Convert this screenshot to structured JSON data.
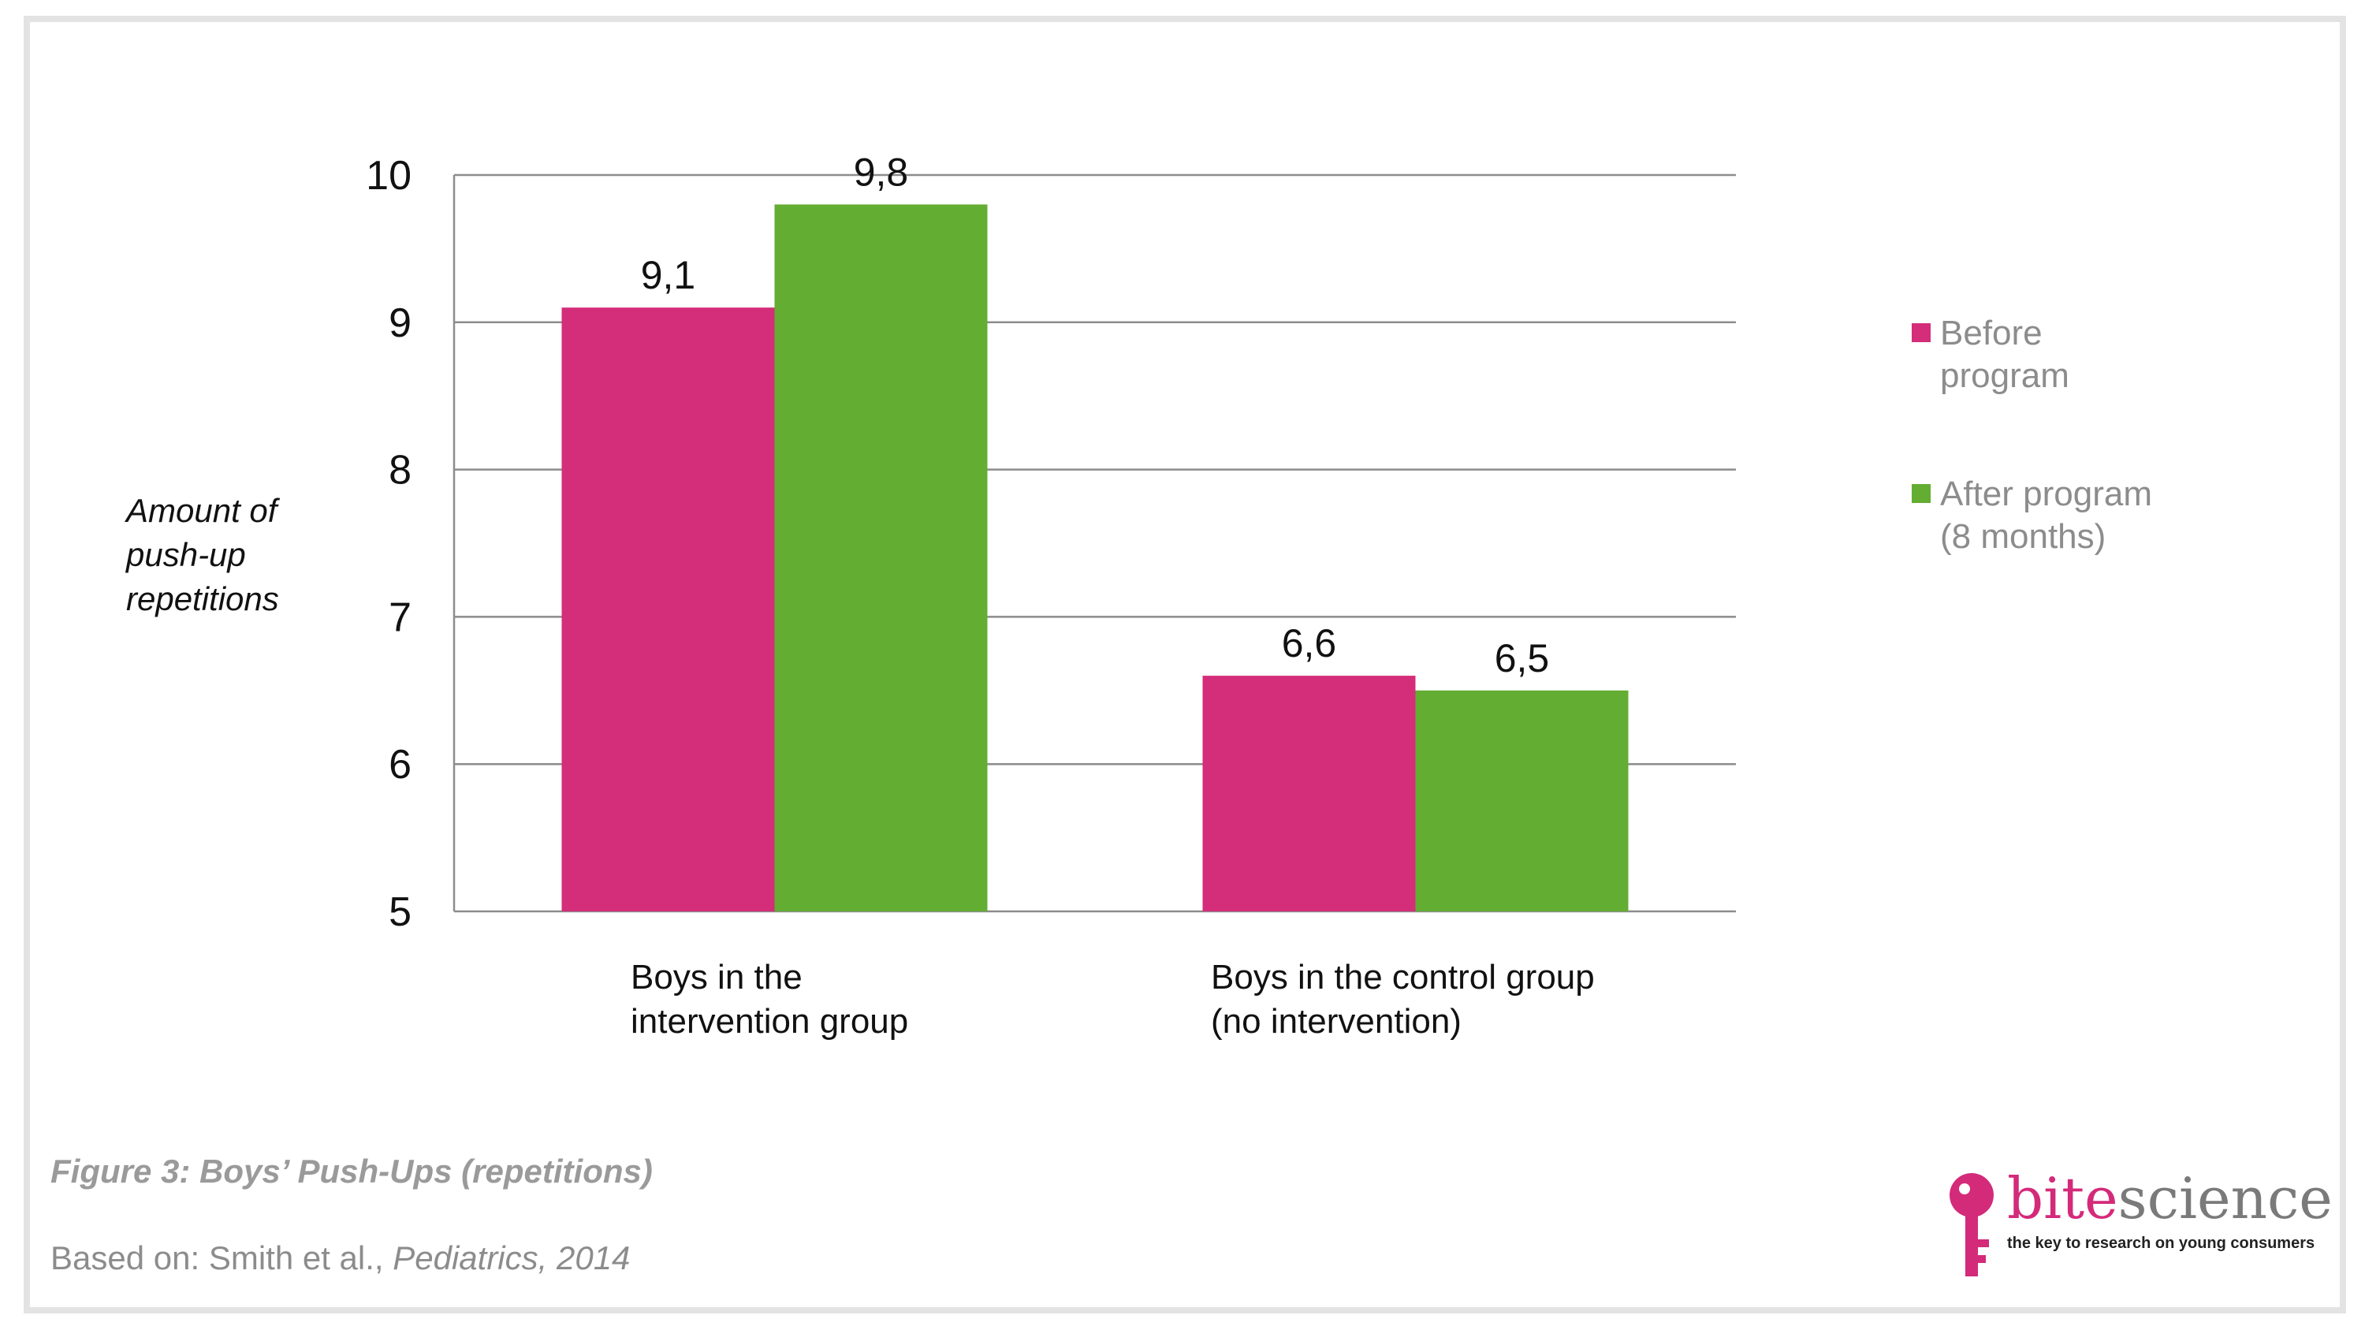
{
  "colors": {
    "before": "#d42d79",
    "after": "#63ad33",
    "grid": "#8c8c8c",
    "brand": "#d42a7a"
  },
  "chart_data": {
    "type": "bar",
    "categories": [
      "Boys in the intervention group",
      "Boys in the control group (no intervention)"
    ],
    "category_lines": [
      [
        "Boys in the",
        "intervention group"
      ],
      [
        "Boys in the control group",
        "(no intervention)"
      ]
    ],
    "series": [
      {
        "name": "Before program",
        "values": [
          9.1,
          6.6
        ],
        "labels": [
          "9,1",
          "6,6"
        ]
      },
      {
        "name": "After program (8 months)",
        "values": [
          9.8,
          6.5
        ],
        "labels": [
          "9,8",
          "6,5"
        ]
      }
    ],
    "legend_lines": [
      [
        "Before",
        "program"
      ],
      [
        "After program",
        "(8 months)"
      ]
    ],
    "ylabel_lines": [
      "Amount of",
      "push-up",
      "repetitions"
    ],
    "ylim": [
      5,
      10
    ],
    "yticks": [
      5,
      6,
      7,
      8,
      9,
      10
    ],
    "grid": true,
    "legend_position": "right"
  },
  "figure": {
    "title": "Figure 3: Boys’ Push-Ups (repetitions)",
    "source_prefix": "Based on: Smith et al., ",
    "source_journal": "Pediatrics, 2014"
  },
  "logo": {
    "word_part1": "bite",
    "word_part2": "science",
    "tagline": "the key to research on young consumers",
    "icon": "key-icon"
  }
}
